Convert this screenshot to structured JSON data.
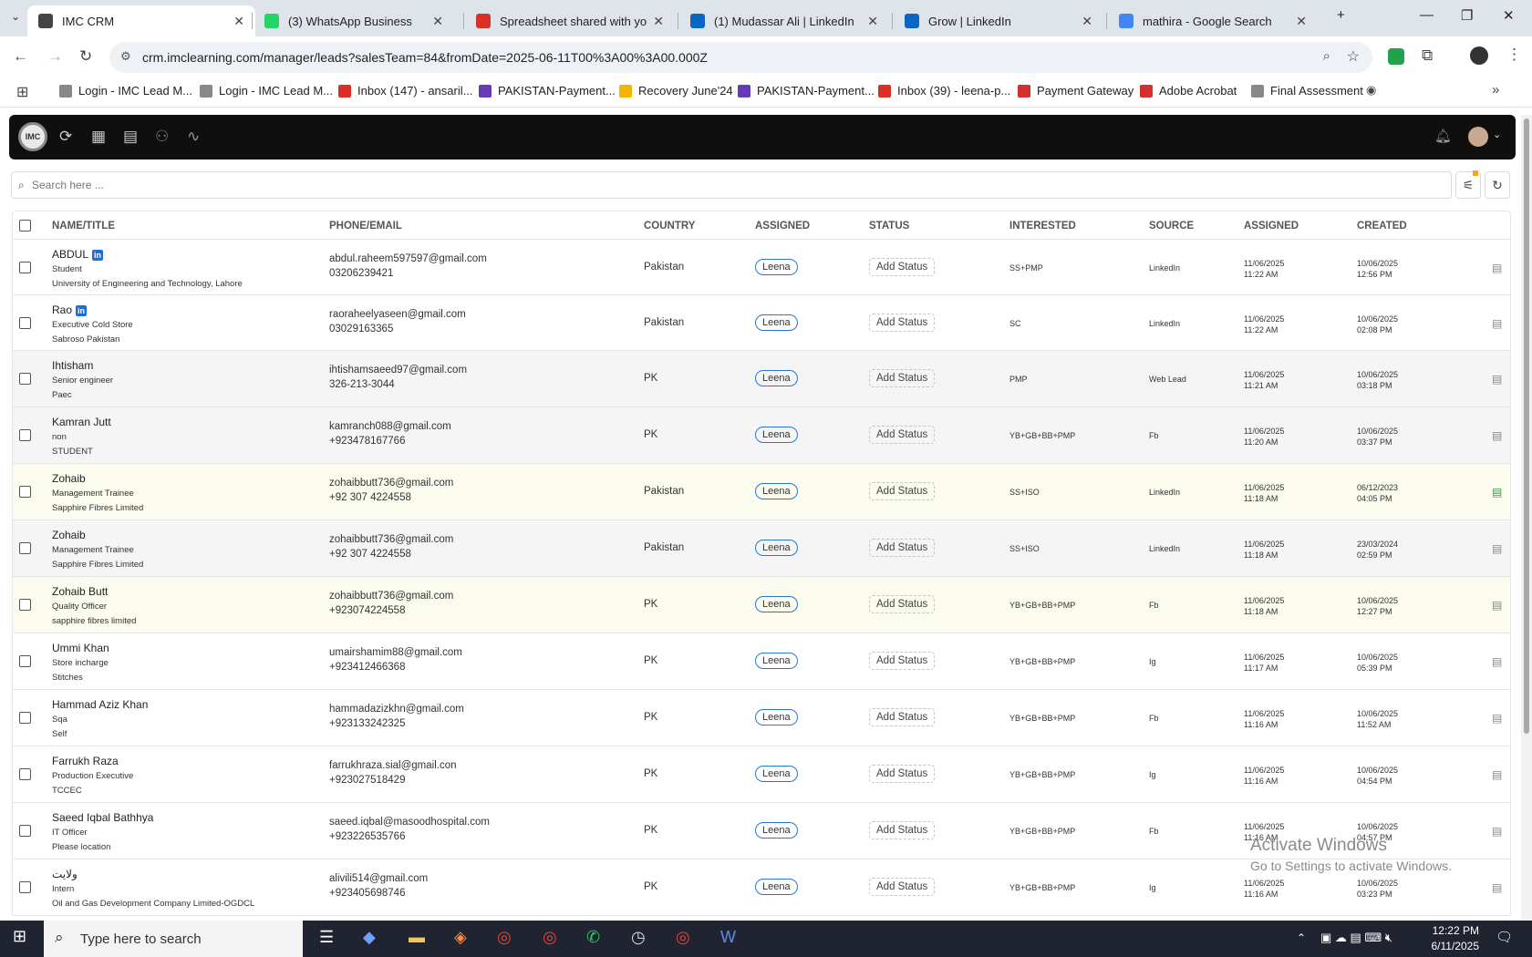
{
  "browser": {
    "tabs": [
      {
        "title": "IMC CRM",
        "color": "#444"
      },
      {
        "title": "(3) WhatsApp Business",
        "color": "#25d366"
      },
      {
        "title": "Spreadsheet shared with you: \"",
        "color": "#d93025"
      },
      {
        "title": "(1) Mudassar Ali | LinkedIn",
        "color": "#0a66c2"
      },
      {
        "title": "Grow | LinkedIn",
        "color": "#0a66c2"
      },
      {
        "title": "mathira - Google Search",
        "color": "#4285f4"
      }
    ],
    "url": "crm.imclearning.com/manager/leads?salesTeam=84&fromDate=2025-06-11T00%3A00%3A00.000Z",
    "bookmarks": [
      "Login - IMC Lead M...",
      "Login - IMC Lead M...",
      "Inbox (147) - ansaril...",
      "PAKISTAN-Payment...",
      "Recovery June'24",
      "PAKISTAN-Payment...",
      "Inbox (39) - leena-p...",
      "Payment Gateway",
      "Adobe Acrobat",
      "Final Assessment"
    ]
  },
  "app": {
    "logo": "IMC",
    "search_placeholder": "Search here ...",
    "columns": {
      "name": "NAME/TITLE",
      "phone": "PHONE/EMAIL",
      "country": "COUNTRY",
      "assigned": "ASSIGNED",
      "status": "STATUS",
      "interested": "INTERESTED",
      "source": "SOURCE",
      "assigned_date": "ASSIGNED",
      "created": "CREATED"
    },
    "rows": [
      {
        "name": "ABDUL",
        "li": true,
        "t1": "Student",
        "t2": "University of Engineering and Technology, Lahore",
        "email": "abdul.raheem597597@gmail.com",
        "phone": "03206239421",
        "country": "Pakistan",
        "assigned": "Leena",
        "status": "Add Status",
        "interested": "SS+PMP",
        "source": "LinkedIn",
        "ad1": "11/06/2025",
        "ad2": "11:22 AM",
        "cr1": "10/06/2025",
        "cr2": "12:56 PM",
        "bg": "white"
      },
      {
        "name": "Rao",
        "li": true,
        "t1": "Executive Cold Store",
        "t2": "Sabroso Pakistan",
        "email": "raoraheelyaseen@gmail.com",
        "phone": "03029163365",
        "country": "Pakistan",
        "assigned": "Leena",
        "status": "Add Status",
        "interested": "SC",
        "source": "LinkedIn",
        "ad1": "11/06/2025",
        "ad2": "11:22 AM",
        "cr1": "10/06/2025",
        "cr2": "02:08 PM",
        "bg": "white"
      },
      {
        "name": "Ihtisham",
        "li": false,
        "t1": "Senior engineer",
        "t2": "Paec",
        "email": "ihtishamsaeed97@gmail.com",
        "phone": "326-213-3044",
        "country": "PK",
        "assigned": "Leena",
        "status": "Add Status",
        "interested": "PMP",
        "source": "Web Lead",
        "ad1": "11/06/2025",
        "ad2": "11:21 AM",
        "cr1": "10/06/2025",
        "cr2": "03:18 PM",
        "bg": "alt"
      },
      {
        "name": "Kamran Jutt",
        "li": false,
        "t1": "non",
        "t2": "STUDENT",
        "email": "kamranch088@gmail.com",
        "phone": "+923478167766",
        "country": "PK",
        "assigned": "Leena",
        "status": "Add Status",
        "interested": "YB+GB+BB+PMP",
        "source": "Fb",
        "ad1": "11/06/2025",
        "ad2": "11:20 AM",
        "cr1": "10/06/2025",
        "cr2": "03:37 PM",
        "bg": "alt"
      },
      {
        "name": "Zohaib",
        "li": false,
        "t1": "Management Trainee",
        "t2": "Sapphire Fibres Limited",
        "email": "zohaibbutt736@gmail.com",
        "phone": "+92 307 4224558",
        "country": "Pakistan",
        "assigned": "Leena",
        "status": "Add Status",
        "interested": "SS+ISO",
        "source": "LinkedIn",
        "ad1": "11/06/2025",
        "ad2": "11:18 AM",
        "cr1": "06/12/2023",
        "cr2": "04:05 PM",
        "bg": "hl"
      },
      {
        "name": "Zohaib",
        "li": false,
        "t1": "Management Trainee",
        "t2": "Sapphire Fibres Limited",
        "email": "zohaibbutt736@gmail.com",
        "phone": "+92 307 4224558",
        "country": "Pakistan",
        "assigned": "Leena",
        "status": "Add Status",
        "interested": "SS+ISO",
        "source": "LinkedIn",
        "ad1": "11/06/2025",
        "ad2": "11:18 AM",
        "cr1": "23/03/2024",
        "cr2": "02:59 PM",
        "bg": "alt"
      },
      {
        "name": "Zohaib Butt",
        "li": false,
        "t1": "Quality Officer",
        "t2": "sapphire fibres limited",
        "email": "zohaibbutt736@gmail.com",
        "phone": "+923074224558",
        "country": "PK",
        "assigned": "Leena",
        "status": "Add Status",
        "interested": "YB+GB+BB+PMP",
        "source": "Fb",
        "ad1": "11/06/2025",
        "ad2": "11:18 AM",
        "cr1": "10/06/2025",
        "cr2": "12:27 PM",
        "bg": "hl"
      },
      {
        "name": "Ummi Khan",
        "li": false,
        "t1": "Store incharge",
        "t2": "Stitches",
        "email": "umairshamim88@gmail.com",
        "phone": "+923412466368",
        "country": "PK",
        "assigned": "Leena",
        "status": "Add Status",
        "interested": "YB+GB+BB+PMP",
        "source": "Ig",
        "ad1": "11/06/2025",
        "ad2": "11:17 AM",
        "cr1": "10/06/2025",
        "cr2": "05:39 PM",
        "bg": "white"
      },
      {
        "name": "Hammad Aziz Khan",
        "li": false,
        "t1": "Sqa",
        "t2": "Self",
        "email": "hammadazizkhn@gmail.com",
        "phone": "+923133242325",
        "country": "PK",
        "assigned": "Leena",
        "status": "Add Status",
        "interested": "YB+GB+BB+PMP",
        "source": "Fb",
        "ad1": "11/06/2025",
        "ad2": "11:16 AM",
        "cr1": "10/06/2025",
        "cr2": "11:52 AM",
        "bg": "white"
      },
      {
        "name": "Farrukh Raza",
        "li": false,
        "t1": "Production Executive",
        "t2": "TCCEC",
        "email": "farrukhraza.sial@gmail.con",
        "phone": "+923027518429",
        "country": "PK",
        "assigned": "Leena",
        "status": "Add Status",
        "interested": "YB+GB+BB+PMP",
        "source": "Ig",
        "ad1": "11/06/2025",
        "ad2": "11:16 AM",
        "cr1": "10/06/2025",
        "cr2": "04:54 PM",
        "bg": "white"
      },
      {
        "name": "Saeed Iqbal Bathhya",
        "li": false,
        "t1": "IT Officer",
        "t2": "Please location",
        "email": "saeed.iqbal@masoodhospital.com",
        "phone": "+923226535766",
        "country": "PK",
        "assigned": "Leena",
        "status": "Add Status",
        "interested": "YB+GB+BB+PMP",
        "source": "Fb",
        "ad1": "11/06/2025",
        "ad2": "11:16 AM",
        "cr1": "10/06/2025",
        "cr2": "04:57 PM",
        "bg": "white"
      },
      {
        "name": "ولایت",
        "li": false,
        "t1": "Intern",
        "t2": "Oil and Gas Development Company Limited-OGDCL",
        "email": "alivili514@gmail.com",
        "phone": "+923405698746",
        "country": "PK",
        "assigned": "Leena",
        "status": "Add Status",
        "interested": "YB+GB+BB+PMP",
        "source": "Ig",
        "ad1": "11/06/2025",
        "ad2": "11:16 AM",
        "cr1": "10/06/2025",
        "cr2": "03:23 PM",
        "bg": "white"
      }
    ]
  },
  "watermark": {
    "line1": "Activate Windows",
    "line2": "Go to Settings to activate Windows."
  },
  "taskbar": {
    "search": "Type here to search",
    "time": "12:22 PM",
    "date": "6/11/2025"
  }
}
